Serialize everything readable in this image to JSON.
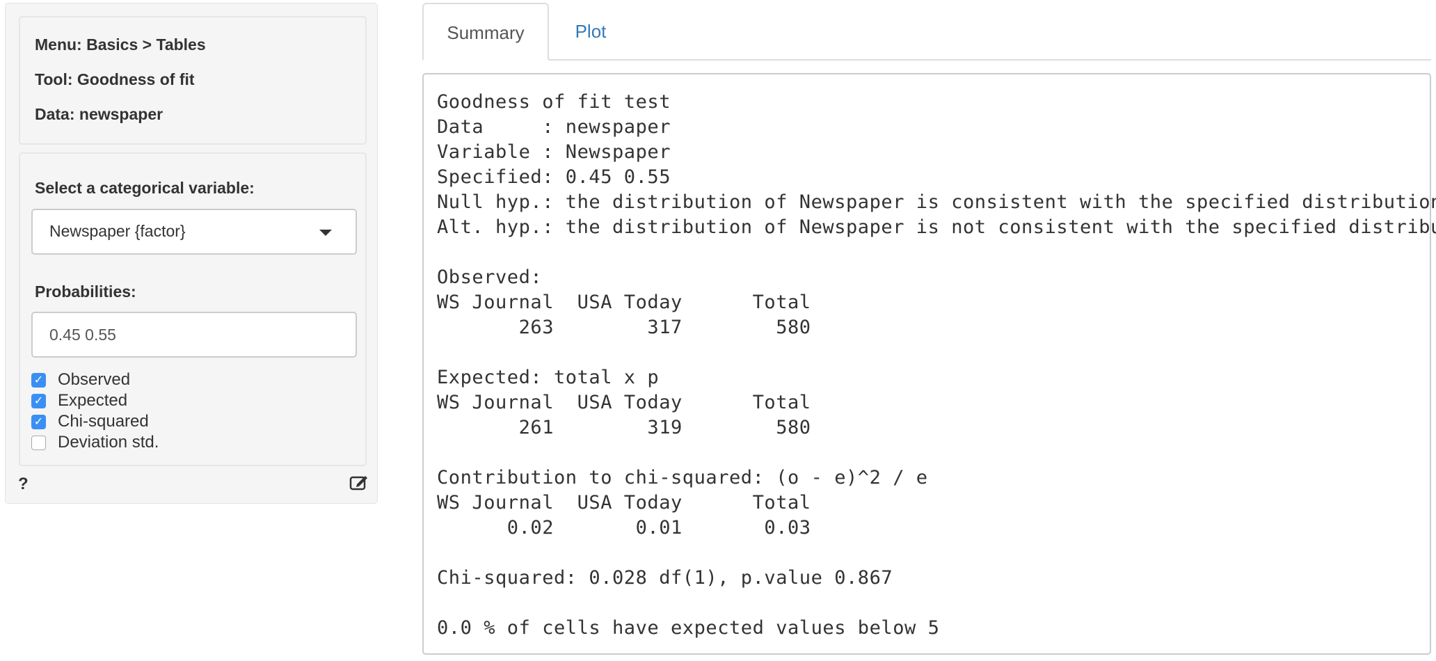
{
  "sidebar": {
    "menu": "Menu: Basics > Tables",
    "tool": "Tool: Goodness of fit",
    "data": "Data: newspaper",
    "select_label": "Select a categorical variable:",
    "select_value": "Newspaper {factor}",
    "prob_label": "Probabilities:",
    "prob_value": "0.45 0.55",
    "checkboxes": [
      {
        "label": "Observed",
        "checked": true
      },
      {
        "label": "Expected",
        "checked": true
      },
      {
        "label": "Chi-squared",
        "checked": true
      },
      {
        "label": "Deviation std.",
        "checked": false
      }
    ],
    "help": "?",
    "edit_icon": "edit-icon"
  },
  "tabs": [
    {
      "label": "Summary",
      "active": true
    },
    {
      "label": "Plot",
      "active": false
    }
  ],
  "colors": {
    "link": "#337ab7",
    "checkbox": "#3b8ff3"
  },
  "output": {
    "lines": [
      "Goodness of fit test",
      "Data     : newspaper",
      "Variable : Newspaper",
      "Specified: 0.45 0.55",
      "Null hyp.: the distribution of Newspaper is consistent with the specified distribution",
      "Alt. hyp.: the distribution of Newspaper is not consistent with the specified distribution",
      "",
      "Observed:",
      "WS Journal  USA Today      Total",
      "       263        317        580",
      "",
      "Expected: total x p",
      "WS Journal  USA Today      Total",
      "       261        319        580",
      "",
      "Contribution to chi-squared: (o - e)^2 / e",
      "WS Journal  USA Today      Total",
      "      0.02       0.01       0.03",
      "",
      "Chi-squared: 0.028 df(1), p.value 0.867",
      "",
      "0.0 % of cells have expected values below 5"
    ]
  }
}
